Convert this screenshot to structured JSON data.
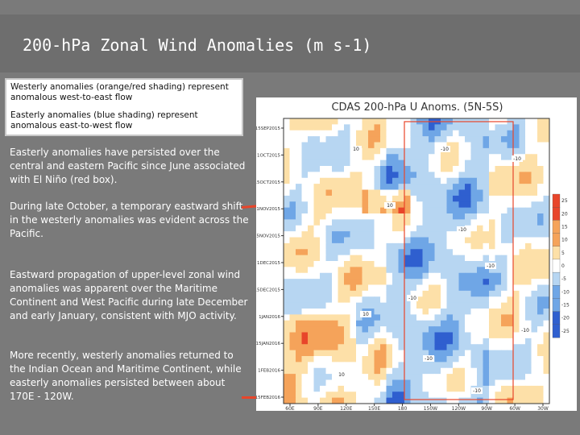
{
  "header": {
    "title": "200-hPa Zonal Wind Anomalies (m s-1)"
  },
  "legend_box": {
    "westerly_text": "Westerly anomalies (orange/red shading) represent anomalous west-to-east flow",
    "easterly_text": "Easterly anomalies (blue shading) represent anomalous east-to-west flow"
  },
  "notes": [
    "Easterly anomalies have persisted over the central and eastern Pacific since June associated with El Niño (red box).",
    "During late October, a temporary eastward shift in the westerly anomalies was evident across the Pacific.",
    "Eastward propagation of upper-level zonal wind anomalies was apparent over the Maritime Continent and West Pacific during late December and early January, consistent with MJO activity.",
    "More recently, westerly anomalies returned to the Indian Ocean and Maritime Continent, while easterly anomalies persisted between about 170E - 120W."
  ],
  "colors": {
    "strong_westerly": "#e8452a",
    "westerly": "#f5a35a",
    "weak_westerly": "#fde0a8",
    "neutral": "#ffffff",
    "weak_easterly": "#b7d6f2",
    "easterly": "#6fa6e6",
    "strong_easterly": "#2f5fcf",
    "arrow": "#e8452a"
  },
  "chart_data": {
    "type": "heatmap",
    "title": "CDAS 200-hPa U Anoms. (5N-5S)",
    "x_tick_labels": [
      "60E",
      "90E",
      "120E",
      "150E",
      "180",
      "150W",
      "120W",
      "90W",
      "60W",
      "30W"
    ],
    "y_tick_labels": [
      "15SEP2015",
      "1OCT2015",
      "15OCT2015",
      "1NOV2015",
      "15NOV2015",
      "1DEC2015",
      "15DEC2015",
      "1JAN2016",
      "15JAN2016",
      "1FEB2016",
      "15FEB2016"
    ],
    "colorbar_ticks": [
      "25",
      "20",
      "15",
      "10",
      "5",
      "0",
      "-5",
      "-10",
      "-15",
      "-20",
      "-25"
    ],
    "contour_labels": [
      "-10",
      "10"
    ]
  }
}
